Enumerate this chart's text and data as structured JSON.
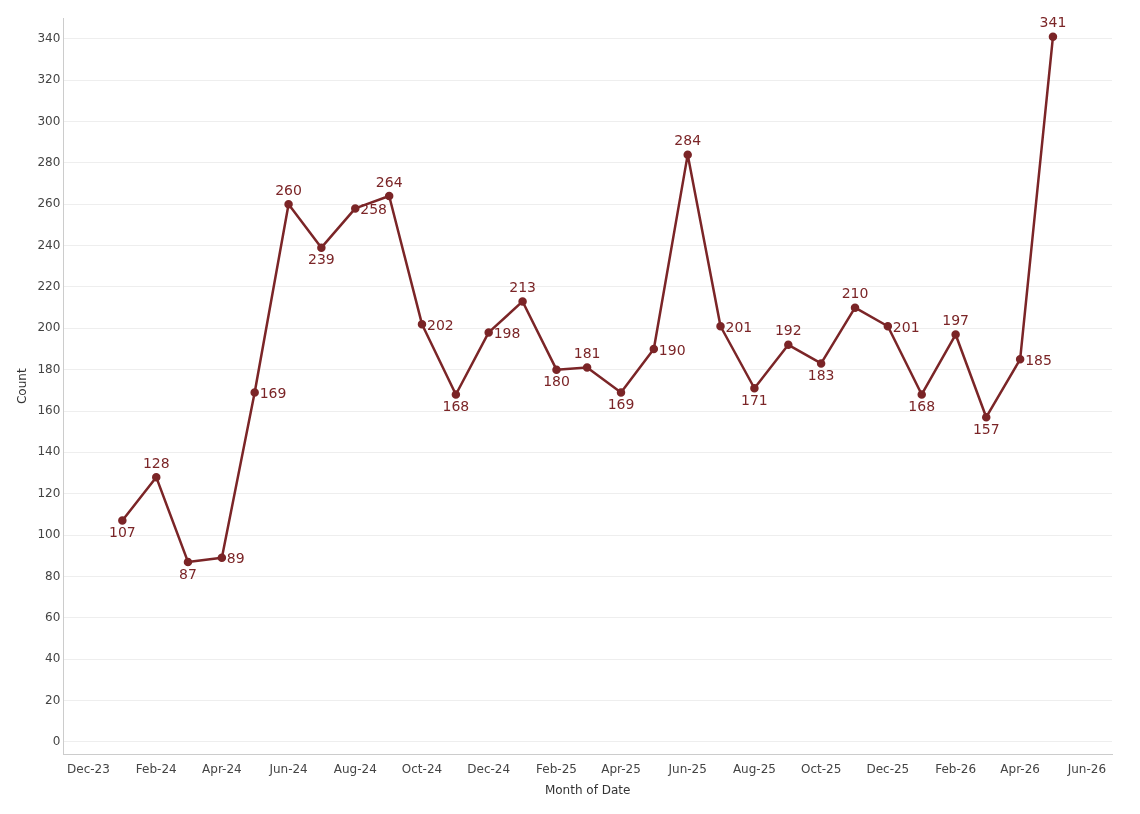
{
  "chart_data": {
    "type": "line",
    "xlabel": "Month of Date",
    "ylabel": "Count",
    "x": [
      "2024-01",
      "2024-02",
      "2024-03",
      "2024-04",
      "2024-05",
      "2024-06",
      "2024-07",
      "2024-08",
      "2024-09",
      "2024-10",
      "2024-11",
      "2024-12",
      "2025-01",
      "2025-02",
      "2025-03",
      "2025-04",
      "2025-05",
      "2025-06",
      "2025-07",
      "2025-08",
      "2025-09",
      "2025-10",
      "2025-11",
      "2025-12",
      "2026-01",
      "2026-02",
      "2026-03",
      "2026-04",
      "2026-05"
    ],
    "series": [
      {
        "color": "#7b2527",
        "values": [
          107,
          128,
          87,
          89,
          169,
          260,
          239,
          258,
          264,
          202,
          168,
          198,
          213,
          180,
          181,
          169,
          190,
          284,
          201,
          171,
          192,
          183,
          210,
          201,
          168,
          197,
          157,
          185,
          341
        ]
      }
    ],
    "xlim": [
      "2023-11-08",
      "2026-06-24"
    ],
    "xticks": [
      {
        "value": "2023-12",
        "label": "Dec-23"
      },
      {
        "value": "2024-02",
        "label": "Feb-24"
      },
      {
        "value": "2024-04",
        "label": "Apr-24"
      },
      {
        "value": "2024-06",
        "label": "Jun-24"
      },
      {
        "value": "2024-08",
        "label": "Aug-24"
      },
      {
        "value": "2024-10",
        "label": "Oct-24"
      },
      {
        "value": "2024-12",
        "label": "Dec-24"
      },
      {
        "value": "2025-02",
        "label": "Feb-25"
      },
      {
        "value": "2025-04",
        "label": "Apr-25"
      },
      {
        "value": "2025-06",
        "label": "Jun-25"
      },
      {
        "value": "2025-08",
        "label": "Aug-25"
      },
      {
        "value": "2025-10",
        "label": "Oct-25"
      },
      {
        "value": "2025-12",
        "label": "Dec-25"
      },
      {
        "value": "2026-02",
        "label": "Feb-26"
      },
      {
        "value": "2026-04",
        "label": "Apr-26"
      },
      {
        "value": "2026-06",
        "label": "Jun-26"
      }
    ],
    "ylim": [
      -6,
      350
    ],
    "yticks": [
      0,
      20,
      40,
      60,
      80,
      100,
      120,
      140,
      160,
      180,
      200,
      220,
      240,
      260,
      280,
      300,
      320,
      340
    ],
    "grid": "y",
    "marker": "circle",
    "line_style": "solid",
    "data_labels": true,
    "legend": false
  }
}
